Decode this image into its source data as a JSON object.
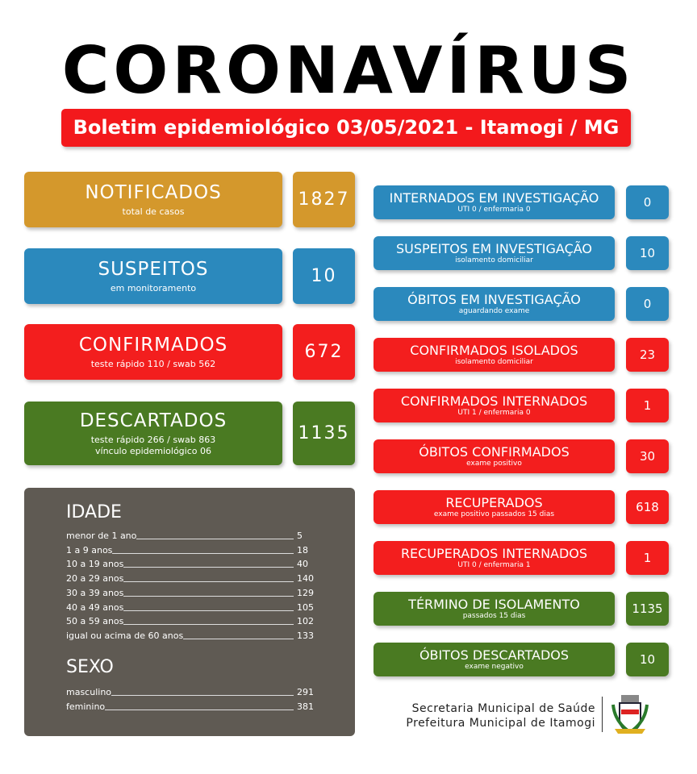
{
  "title": "CORONAVÍRUS",
  "subtitle": "Boletim epidemiológico 03/05/2021 - Itamogi / MG",
  "colors": {
    "orange": "#d4982c",
    "blue": "#2b89bd",
    "red": "#f31e1e",
    "green": "#4a7a22",
    "panel": "#5f5a53"
  },
  "main_cards": [
    {
      "label": "NOTIFICADOS",
      "sub": "total de casos",
      "value": "1827"
    },
    {
      "label": "SUSPEITOS",
      "sub": "em monitoramento",
      "value": "10"
    },
    {
      "label": "CONFIRMADOS",
      "sub": "teste rápido 110 / swab 562",
      "value": "672"
    },
    {
      "label": "DESCARTADOS",
      "sub": "teste rápido 266 / swab 863",
      "sub2": "vínculo epidemiológico 06",
      "value": "1135"
    }
  ],
  "detail_cards": [
    {
      "label": "INTERNADOS EM INVESTIGAÇÃO",
      "sub": "UTI 0 / enfermaria 0",
      "value": "0"
    },
    {
      "label": "SUSPEITOS EM INVESTIGAÇÃO",
      "sub": "isolamento domiciliar",
      "value": "10"
    },
    {
      "label": "ÓBITOS EM INVESTIGAÇÃO",
      "sub": "aguardando exame",
      "value": "0"
    },
    {
      "label": "CONFIRMADOS ISOLADOS",
      "sub": "isolamento domiciliar",
      "value": "23"
    },
    {
      "label": "CONFIRMADOS INTERNADOS",
      "sub": "UTI 1 / enfermaria 0",
      "value": "1"
    },
    {
      "label": "ÓBITOS CONFIRMADOS",
      "sub": "exame positivo",
      "value": "30"
    },
    {
      "label": "RECUPERADOS",
      "sub": "exame positivo passados 15 dias",
      "value": "618"
    },
    {
      "label": "RECUPERADOS INTERNADOS",
      "sub": "UTI 0 / enfermaria 1",
      "value": "1"
    },
    {
      "label": "TÉRMINO DE ISOLAMENTO",
      "sub": "passados 15 dias",
      "value": "1135"
    },
    {
      "label": "ÓBITOS DESCARTADOS",
      "sub": "exame negativo",
      "value": "10"
    }
  ],
  "idade": {
    "title": "IDADE",
    "rows": [
      {
        "label": "menor de 1 ano",
        "value": "5"
      },
      {
        "label": "1 a 9 anos",
        "value": "18"
      },
      {
        "label": "10 a 19 anos",
        "value": "40"
      },
      {
        "label": "20 a 29 anos",
        "value": "140"
      },
      {
        "label": "30 a 39 anos",
        "value": "129"
      },
      {
        "label": "40 a 49 anos",
        "value": "105"
      },
      {
        "label": "50 a 59 anos",
        "value": "102"
      },
      {
        "label": "igual ou acima de 60 anos",
        "value": "133"
      }
    ]
  },
  "sexo": {
    "title": "SEXO",
    "rows": [
      {
        "label": "masculino",
        "value": "291"
      },
      {
        "label": "feminino",
        "value": "381"
      }
    ]
  },
  "footer": {
    "line1": "Secretaria Municipal de Saúde",
    "line2": "Prefeitura Municipal de Itamogi"
  }
}
